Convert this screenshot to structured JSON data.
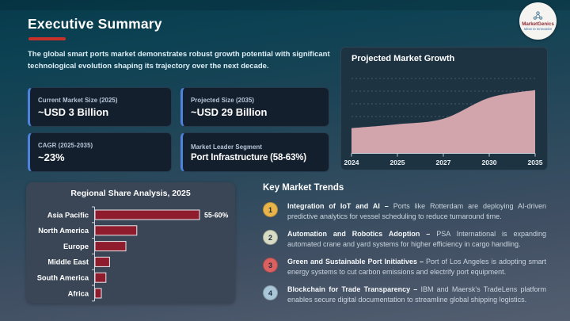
{
  "slide": {
    "title": "Executive Summary",
    "subtitle": "The global smart ports market demonstrates robust growth potential with significant technological evolution shaping its trajectory over the next decade.",
    "accent_red": "#c8302a"
  },
  "logo": {
    "brand": "MarketGenics",
    "tagline": "Ideas to Innovation",
    "icon": "molecule-icon"
  },
  "stats": [
    {
      "label": "Current Market Size (2025)",
      "value": "~USD 3 Billion"
    },
    {
      "label": "Projected Size (2035)",
      "value": "~USD 29 Billion"
    },
    {
      "label": "CAGR (2025-2035)",
      "value": "~23%"
    },
    {
      "label": "Market Leader Segment",
      "value": "Port Infrastructure (58-63%)"
    }
  ],
  "chart_data": [
    {
      "type": "area",
      "title": "Projected Market Growth",
      "x": [
        "2024",
        "2025",
        "2027",
        "2030",
        "2035"
      ],
      "values": [
        32,
        37,
        44,
        71,
        81
      ],
      "ylim": [
        0,
        100
      ],
      "y_axis_labels": "none",
      "grid": "dashed-horizontal",
      "fill_color": "#d2a4ab",
      "axis_color": "#c9d2da",
      "grid_color": "#55687a",
      "tick_label_color": "#edf2f6"
    },
    {
      "type": "bar",
      "title": "Regional Share Analysis, 2025",
      "orientation": "horizontal",
      "categories": [
        "Asia Pacific",
        "North America",
        "Europe",
        "Middle East",
        "South America",
        "Africa"
      ],
      "values": [
        57.5,
        23,
        17,
        8,
        6,
        3.5
      ],
      "data_labels": [
        "55-60%",
        "",
        "",
        "",
        "",
        ""
      ],
      "xlim": [
        0,
        62
      ],
      "bar_color": "#8e1c2c",
      "bar_border_color": "#ebe9ee",
      "axis_color": "#cdd5dd",
      "label_color": "#ffffff"
    }
  ],
  "trends": {
    "title": "Key Market Trends",
    "items": [
      {
        "num": "1",
        "color": "#e9b54a",
        "lead": "Integration of IoT and AI –",
        "body": "Ports like Rotterdam are deploying AI-driven predictive analytics for vessel scheduling to reduce turnaround time."
      },
      {
        "num": "2",
        "color": "#d9dcc5",
        "lead": "Automation and Robotics Adoption –",
        "body": "PSA International is expanding automated crane and yard systems for higher efficiency in cargo handling."
      },
      {
        "num": "3",
        "color": "#db6161",
        "lead": "Green and Sustainable Port Initiatives –",
        "body": "Port of Los Angeles is adopting smart energy systems to cut carbon emissions and electrify port equipment."
      },
      {
        "num": "4",
        "color": "#a9c6d8",
        "lead": "Blockchain for Trade Transparency –",
        "body": "IBM and Maersk's TradeLens platform enables secure digital documentation to streamline global shipping logistics."
      }
    ]
  }
}
